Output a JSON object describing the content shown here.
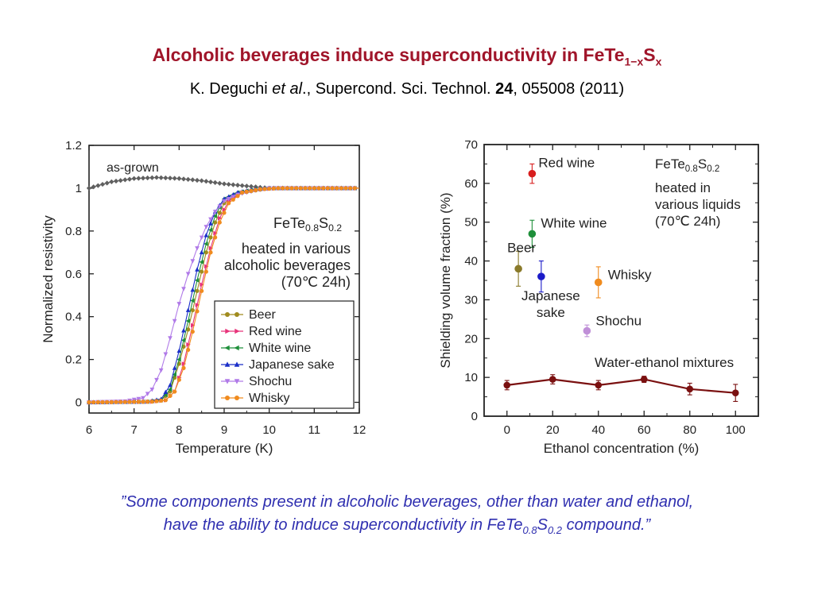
{
  "header": {
    "title_main": "Alcoholic beverages induce superconductivity in FeTe",
    "title_sub1": "1−x",
    "title_mid": "S",
    "title_sub2": "x",
    "citation_authors": "K. Deguchi ",
    "citation_etal": "et al",
    "citation_journal": "., Supercond. Sci. Technol. ",
    "citation_volume": "24",
    "citation_rest": ", 055008 (2011)"
  },
  "quote": {
    "line1": "”Some components present in alcoholic beverages, other than water and ethanol,",
    "line2_a": "have the ability to induce superconductivity in FeTe",
    "line2_sub1": "0.8",
    "line2_b": "S",
    "line2_sub2": "0.2",
    "line2_c": " compound.”"
  },
  "chart_data": [
    {
      "type": "line",
      "xlabel": "Temperature (K)",
      "ylabel": "Normalized resistivity",
      "xlim": [
        6,
        12
      ],
      "ylim": [
        -0.05,
        1.2
      ],
      "xticks": [
        "6",
        "7",
        "8",
        "9",
        "10",
        "11",
        "12"
      ],
      "yticks": [
        "0",
        "0.2",
        "0.4",
        "0.6",
        "0.8",
        "1",
        "1.2"
      ],
      "annotation_as_grown": "as-grown",
      "compound_text": {
        "a": "FeTe",
        "s1": "0.8",
        "b": "S",
        "s2": "0.2"
      },
      "annotation_lines": [
        "heated in various",
        "alcoholic beverages",
        "(70℃ 24h)"
      ],
      "legend": {
        "placement": "lower-right"
      },
      "series": [
        {
          "name": "as-grown",
          "color": "#606060",
          "marker": "diamond",
          "legend": false,
          "pts": [
            [
              6,
              1.0
            ],
            [
              6.5,
              1.03
            ],
            [
              7,
              1.045
            ],
            [
              7.5,
              1.05
            ],
            [
              8,
              1.045
            ],
            [
              8.5,
              1.035
            ],
            [
              9,
              1.02
            ],
            [
              9.5,
              1.01
            ],
            [
              10,
              1.0
            ],
            [
              11,
              1.0
            ],
            [
              12,
              1.0
            ]
          ]
        },
        {
          "name": "Beer",
          "color": "#a08b1e",
          "marker": "circle",
          "legend": true,
          "pts": [
            [
              6,
              0
            ],
            [
              7.3,
              0.003
            ],
            [
              7.6,
              0.01
            ],
            [
              7.8,
              0.05
            ],
            [
              8.0,
              0.18
            ],
            [
              8.2,
              0.34
            ],
            [
              8.4,
              0.52
            ],
            [
              8.6,
              0.7
            ],
            [
              8.8,
              0.84
            ],
            [
              9.0,
              0.93
            ],
            [
              9.3,
              0.975
            ],
            [
              9.7,
              0.99
            ],
            [
              10,
              1.0
            ],
            [
              12,
              1.0
            ]
          ]
        },
        {
          "name": "Red wine",
          "color": "#e8337a",
          "marker": "triangle-right",
          "legend": true,
          "pts": [
            [
              6,
              0
            ],
            [
              7.4,
              0.003
            ],
            [
              7.7,
              0.01
            ],
            [
              7.9,
              0.05
            ],
            [
              8.1,
              0.18
            ],
            [
              8.3,
              0.36
            ],
            [
              8.5,
              0.55
            ],
            [
              8.7,
              0.72
            ],
            [
              8.9,
              0.86
            ],
            [
              9.1,
              0.94
            ],
            [
              9.4,
              0.98
            ],
            [
              9.8,
              0.995
            ],
            [
              10.2,
              1.0
            ],
            [
              12,
              1.0
            ]
          ]
        },
        {
          "name": "White wine",
          "color": "#1f8f3a",
          "marker": "triangle-left",
          "legend": true,
          "pts": [
            [
              6,
              0
            ],
            [
              7.3,
              0.003
            ],
            [
              7.6,
              0.01
            ],
            [
              7.8,
              0.06
            ],
            [
              8.0,
              0.2
            ],
            [
              8.2,
              0.38
            ],
            [
              8.4,
              0.57
            ],
            [
              8.6,
              0.74
            ],
            [
              8.8,
              0.87
            ],
            [
              9.0,
              0.95
            ],
            [
              9.3,
              0.98
            ],
            [
              9.7,
              0.995
            ],
            [
              10,
              1.0
            ],
            [
              12,
              1.0
            ]
          ]
        },
        {
          "name": "Japanese sake",
          "color": "#1a2fc8",
          "marker": "triangle-up",
          "legend": true,
          "pts": [
            [
              6,
              0
            ],
            [
              7.3,
              0.003
            ],
            [
              7.6,
              0.015
            ],
            [
              7.8,
              0.08
            ],
            [
              8.0,
              0.24
            ],
            [
              8.2,
              0.43
            ],
            [
              8.4,
              0.62
            ],
            [
              8.6,
              0.78
            ],
            [
              8.8,
              0.89
            ],
            [
              9.0,
              0.95
            ],
            [
              9.3,
              0.98
            ],
            [
              9.7,
              0.995
            ],
            [
              10,
              1.0
            ],
            [
              12,
              1.0
            ]
          ]
        },
        {
          "name": "Shochu",
          "color": "#b07ae8",
          "marker": "triangle-down",
          "legend": true,
          "pts": [
            [
              6,
              0
            ],
            [
              6.8,
              0.005
            ],
            [
              7.2,
              0.02
            ],
            [
              7.4,
              0.06
            ],
            [
              7.6,
              0.15
            ],
            [
              7.8,
              0.3
            ],
            [
              8.0,
              0.46
            ],
            [
              8.2,
              0.6
            ],
            [
              8.4,
              0.72
            ],
            [
              8.6,
              0.82
            ],
            [
              8.8,
              0.89
            ],
            [
              9.0,
              0.94
            ],
            [
              9.3,
              0.97
            ],
            [
              9.7,
              0.99
            ],
            [
              10,
              1.0
            ],
            [
              12,
              1.0
            ]
          ]
        },
        {
          "name": "Whisky",
          "color": "#f08b1e",
          "marker": "circle",
          "legend": true,
          "pts": [
            [
              6,
              0
            ],
            [
              7.4,
              0.003
            ],
            [
              7.7,
              0.01
            ],
            [
              7.9,
              0.05
            ],
            [
              8.1,
              0.16
            ],
            [
              8.3,
              0.33
            ],
            [
              8.5,
              0.52
            ],
            [
              8.7,
              0.7
            ],
            [
              8.9,
              0.84
            ],
            [
              9.1,
              0.93
            ],
            [
              9.4,
              0.98
            ],
            [
              9.8,
              0.995
            ],
            [
              10.2,
              1.0
            ],
            [
              12,
              1.0
            ]
          ]
        }
      ]
    },
    {
      "type": "scatter",
      "xlabel": "Ethanol concentration (%)",
      "ylabel": "Shielding volume fraction (%)",
      "xlim": [
        -10,
        110
      ],
      "ylim": [
        0,
        70
      ],
      "xticks": [
        "0",
        "20",
        "40",
        "60",
        "80",
        "100"
      ],
      "yticks": [
        "0",
        "10",
        "20",
        "30",
        "40",
        "50",
        "60",
        "70"
      ],
      "compound_text": {
        "a": "FeTe",
        "s1": "0.8",
        "b": "S",
        "s2": "0.2"
      },
      "annotation_lines": [
        "heated in",
        "various liquids",
        "(70℃ 24h)"
      ],
      "points": [
        {
          "label_lines": [
            "Red wine"
          ],
          "x": 11,
          "y": 62.5,
          "err": 2.5,
          "color": "#d81e1e"
        },
        {
          "label_lines": [
            "White wine"
          ],
          "x": 11,
          "y": 47,
          "err": 3.5,
          "color": "#1f8f3a"
        },
        {
          "label_lines": [
            "Beer"
          ],
          "x": 5,
          "y": 38,
          "err": 4.5,
          "color": "#8a7a2a"
        },
        {
          "label_lines": [
            "Japanese",
            "sake"
          ],
          "x": 15,
          "y": 36,
          "err": 4,
          "color": "#1a1ac8"
        },
        {
          "label_lines": [
            "Whisky"
          ],
          "x": 40,
          "y": 34.5,
          "err": 4,
          "color": "#f08b1e"
        },
        {
          "label_lines": [
            "Shochu"
          ],
          "x": 35,
          "y": 22,
          "err": 1.5,
          "color": "#c090d8"
        }
      ],
      "series": [
        {
          "name": "Water-ethanol mixtures",
          "color": "#7a1010",
          "x": [
            0,
            20,
            40,
            60,
            80,
            100
          ],
          "y": [
            8,
            9.5,
            8,
            9.5,
            7,
            6
          ],
          "err": [
            1.2,
            1.2,
            1.2,
            0.8,
            1.5,
            2.2
          ]
        }
      ]
    }
  ]
}
